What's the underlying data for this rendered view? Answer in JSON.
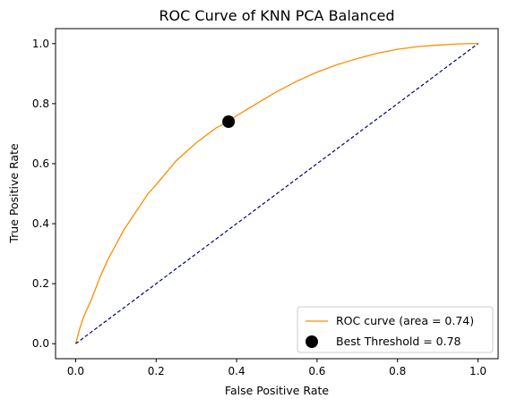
{
  "chart_data": {
    "type": "line",
    "title": "ROC Curve of KNN PCA Balanced",
    "xlabel": "False Positive Rate",
    "ylabel": "True Positive Rate",
    "xlim": [
      -0.05,
      1.05
    ],
    "ylim": [
      -0.05,
      1.05
    ],
    "grid": false,
    "legend_position": "lower-right",
    "xticks": [
      "0.0",
      "0.2",
      "0.4",
      "0.6",
      "0.8",
      "1.0"
    ],
    "yticks": [
      "0.0",
      "0.2",
      "0.4",
      "0.6",
      "0.8",
      "1.0"
    ],
    "series": [
      {
        "name": "ROC curve (area = 0.74)",
        "color": "#ff8c00",
        "style": "solid",
        "x": [
          0.0,
          0.01,
          0.02,
          0.04,
          0.06,
          0.08,
          0.1,
          0.12,
          0.15,
          0.18,
          0.2,
          0.25,
          0.3,
          0.35,
          0.38,
          0.4,
          0.45,
          0.5,
          0.55,
          0.6,
          0.65,
          0.7,
          0.75,
          0.8,
          0.85,
          0.9,
          0.95,
          0.98,
          1.0
        ],
        "y": [
          0.0,
          0.05,
          0.09,
          0.15,
          0.22,
          0.28,
          0.33,
          0.38,
          0.44,
          0.5,
          0.53,
          0.61,
          0.67,
          0.72,
          0.74,
          0.76,
          0.8,
          0.84,
          0.875,
          0.905,
          0.93,
          0.95,
          0.968,
          0.981,
          0.99,
          0.995,
          0.999,
          1.0,
          1.0
        ]
      },
      {
        "name": "",
        "color": "#000080",
        "style": "dashed",
        "x": [
          0.0,
          1.0
        ],
        "y": [
          0.0,
          1.0
        ]
      }
    ],
    "points": [
      {
        "name": "Best Threshold = 0.78",
        "x": 0.38,
        "y": 0.74,
        "color": "#000000"
      }
    ],
    "legend": [
      {
        "label": "ROC curve (area = 0.74)",
        "kind": "line",
        "color": "#ff8c00"
      },
      {
        "label": "Best Threshold = 0.78",
        "kind": "marker",
        "color": "#000000"
      }
    ]
  }
}
